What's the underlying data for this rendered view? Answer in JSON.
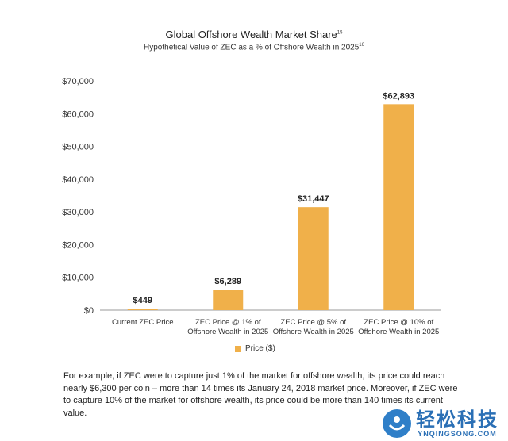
{
  "title": "Global Offshore Wealth Market Share",
  "title_sup": "15",
  "subtitle": "Hypothetical Value of ZEC as a % of Offshore Wealth in 2025",
  "subtitle_sup": "16",
  "chart_data": {
    "type": "bar",
    "categories": [
      [
        "Current ZEC Price"
      ],
      [
        "ZEC Price @ 1% of",
        "Offshore Wealth in 2025"
      ],
      [
        "ZEC Price @ 5% of",
        "Offshore Wealth in 2025"
      ],
      [
        "ZEC Price @ 10% of",
        "Offshore Wealth in 2025"
      ]
    ],
    "series": [
      {
        "name": "Price  ($)",
        "values": [
          449,
          6289,
          31447,
          62893
        ],
        "color": "#f0b04a"
      }
    ],
    "data_labels": [
      "$449",
      "$6,289",
      "$31,447",
      "$62,893"
    ],
    "yticks": [
      "$0",
      "$10,000",
      "$20,000",
      "$30,000",
      "$40,000",
      "$50,000",
      "$60,000",
      "$70,000"
    ],
    "ylim": [
      0,
      70000
    ],
    "grid": false,
    "legend": "bottom"
  },
  "caption": "For example, if ZEC were to capture just 1% of the market for offshore wealth, its price could reach nearly $6,300 per coin – more than 14 times its January 24, 2018 market price.  Moreover, if ZEC were to capture 10% of the market for offshore wealth, its price could be more than 140 times its current value.",
  "watermark": {
    "cn": "轻松科技",
    "en": "YNQINGSONG.COM",
    "icon": "watermark-logo-icon",
    "color": "#2a6fb5"
  }
}
